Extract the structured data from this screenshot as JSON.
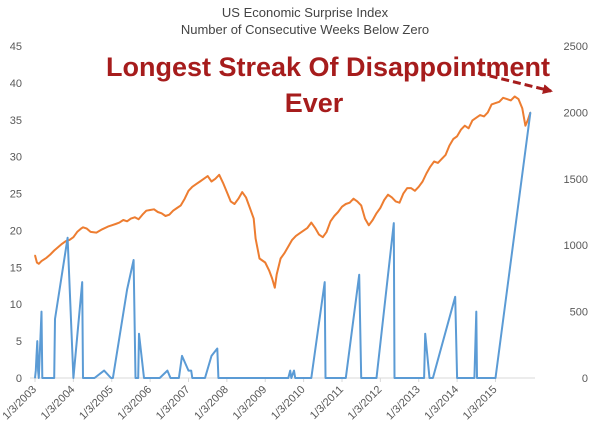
{
  "chart_data": {
    "type": "line",
    "title": "US Economic Surprise Index",
    "subtitle": "Number of Consecutive Weeks Below Zero",
    "annotation": "Longest Streak Of Disappointment Ever",
    "annotation_color": "#a61c1c",
    "grid": false,
    "legend": "none",
    "x_tick_labels": [
      "1/3/2003",
      "1/3/2004",
      "1/3/2005",
      "1/3/2006",
      "1/3/2007",
      "1/3/2008",
      "1/3/2009",
      "1/3/2010",
      "1/3/2011",
      "1/3/2012",
      "1/3/2013",
      "1/3/2014",
      "1/3/2015"
    ],
    "xlim": [
      2003.0,
      2015.9
    ],
    "y_left": {
      "ticks": [
        "0",
        "5",
        "10",
        "15",
        "20",
        "25",
        "30",
        "35",
        "40",
        "45"
      ],
      "ylim": [
        0,
        45
      ]
    },
    "y_right": {
      "ticks": [
        "0",
        "500",
        "1000",
        "1500",
        "2000",
        "2500"
      ],
      "ylim": [
        0,
        2500
      ]
    },
    "series": [
      {
        "axis": "left",
        "color": "#5b9bd5",
        "x": [
          2003.0,
          2003.02,
          2003.04,
          2003.06,
          2003.08,
          2003.1,
          2003.17,
          2003.19,
          2003.5,
          2003.52,
          2003.85,
          2004.0,
          2004.23,
          2004.25,
          2004.55,
          2004.8,
          2004.98,
          2005.03,
          2005.4,
          2005.57,
          2005.62,
          2005.69,
          2005.71,
          2005.84,
          2005.86,
          2006.25,
          2006.45,
          2006.53,
          2006.73,
          2006.75,
          2006.83,
          2007.0,
          2007.07,
          2007.1,
          2007.2,
          2007.4,
          2007.43,
          2007.6,
          2007.75,
          2007.78,
          2008.05,
          2008.3,
          2008.34,
          2008.55,
          2008.92,
          2008.94,
          2009.6,
          2009.65,
          2009.68,
          2009.75,
          2009.78,
          2010.2,
          2010.55,
          2010.57,
          2011.07,
          2011.1,
          2011.45,
          2011.5,
          2011.52,
          2011.9,
          2012.35,
          2012.37,
          2012.75,
          2012.9,
          2012.92,
          2013.1,
          2013.14,
          2013.17,
          2013.28,
          2013.35,
          2013.37,
          2013.95,
          2014.0,
          2014.02,
          2014.2,
          2014.4,
          2014.45,
          2014.5,
          2014.52,
          2015.0,
          2015.91
        ],
        "y": [
          0,
          1,
          3,
          5,
          1,
          0,
          9,
          0,
          0,
          8,
          19,
          0,
          13,
          0,
          0,
          1,
          0,
          0,
          12,
          16,
          0,
          0,
          6,
          0,
          0,
          0,
          1,
          0,
          0,
          0,
          3,
          1,
          1,
          0,
          0,
          0,
          0,
          3,
          4,
          0,
          0,
          0,
          0,
          0,
          0,
          0,
          0,
          1,
          0,
          1,
          0,
          0,
          13,
          0,
          0,
          0,
          14,
          0,
          0,
          0,
          21,
          0,
          0,
          0,
          0,
          0,
          0,
          6,
          0,
          0,
          0,
          11,
          0,
          0,
          0,
          0,
          0,
          9,
          0,
          0,
          36
        ]
      },
      {
        "axis": "right",
        "color": "#ed7d31",
        "x": [
          2003.0,
          2003.05,
          2003.1,
          2003.17,
          2003.3,
          2003.4,
          2003.5,
          2003.6,
          2003.7,
          2003.8,
          2003.9,
          2004.0,
          2004.1,
          2004.2,
          2004.25,
          2004.35,
          2004.45,
          2004.6,
          2004.75,
          2004.9,
          2005.0,
          2005.1,
          2005.2,
          2005.3,
          2005.4,
          2005.5,
          2005.6,
          2005.7,
          2005.8,
          2005.9,
          2006.0,
          2006.1,
          2006.2,
          2006.3,
          2006.4,
          2006.5,
          2006.6,
          2006.7,
          2006.8,
          2006.9,
          2007.0,
          2007.1,
          2007.2,
          2007.3,
          2007.4,
          2007.5,
          2007.6,
          2007.7,
          2007.8,
          2007.9,
          2008.0,
          2008.1,
          2008.2,
          2008.3,
          2008.4,
          2008.5,
          2008.6,
          2008.7,
          2008.75,
          2008.85,
          2009.0,
          2009.1,
          2009.18,
          2009.25,
          2009.3,
          2009.4,
          2009.5,
          2009.6,
          2009.7,
          2009.8,
          2009.9,
          2010.0,
          2010.1,
          2010.2,
          2010.3,
          2010.4,
          2010.5,
          2010.6,
          2010.7,
          2010.8,
          2010.9,
          2011.0,
          2011.1,
          2011.2,
          2011.3,
          2011.4,
          2011.5,
          2011.6,
          2011.7,
          2011.8,
          2011.9,
          2012.0,
          2012.1,
          2012.2,
          2012.3,
          2012.4,
          2012.5,
          2012.6,
          2012.7,
          2012.8,
          2012.9,
          2013.0,
          2013.1,
          2013.2,
          2013.3,
          2013.4,
          2013.5,
          2013.6,
          2013.7,
          2013.8,
          2013.9,
          2014.0,
          2014.1,
          2014.2,
          2014.3,
          2014.4,
          2014.5,
          2014.6,
          2014.7,
          2014.8,
          2014.9,
          2015.0,
          2015.1,
          2015.2,
          2015.3,
          2015.4,
          2015.5,
          2015.6,
          2015.7,
          2015.78,
          2015.84,
          2015.91
        ],
        "y": [
          925,
          870,
          860,
          880,
          905,
          930,
          960,
          985,
          1010,
          1030,
          1040,
          1060,
          1100,
          1125,
          1135,
          1125,
          1100,
          1095,
          1120,
          1140,
          1150,
          1160,
          1170,
          1190,
          1180,
          1200,
          1210,
          1195,
          1230,
          1260,
          1265,
          1270,
          1250,
          1240,
          1220,
          1230,
          1260,
          1280,
          1300,
          1350,
          1410,
          1440,
          1460,
          1480,
          1500,
          1520,
          1480,
          1500,
          1530,
          1470,
          1400,
          1330,
          1310,
          1350,
          1400,
          1360,
          1280,
          1200,
          1050,
          900,
          870,
          810,
          750,
          680,
          780,
          900,
          940,
          990,
          1040,
          1070,
          1090,
          1110,
          1130,
          1170,
          1130,
          1080,
          1060,
          1100,
          1180,
          1220,
          1250,
          1290,
          1310,
          1320,
          1350,
          1330,
          1300,
          1200,
          1150,
          1190,
          1240,
          1280,
          1340,
          1380,
          1360,
          1330,
          1320,
          1390,
          1430,
          1430,
          1410,
          1440,
          1480,
          1540,
          1590,
          1630,
          1620,
          1650,
          1680,
          1750,
          1800,
          1820,
          1870,
          1900,
          1880,
          1940,
          1960,
          1980,
          1970,
          2000,
          2060,
          2070,
          2080,
          2110,
          2100,
          2090,
          2120,
          2100,
          2030,
          1900,
          1940,
          2000
        ]
      }
    ]
  }
}
